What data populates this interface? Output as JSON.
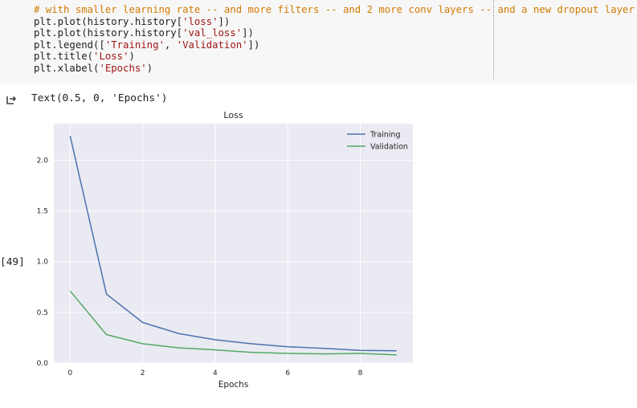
{
  "cell": {
    "code_lines": [
      {
        "parts": [
          {
            "t": "# with smaller learning rate -- and more filters -- and 2 more conv layers -- and a new dropout layer",
            "c": "cm"
          }
        ]
      },
      {
        "parts": [
          {
            "t": "plt.plot(history.history[",
            "c": ""
          },
          {
            "t": "'loss'",
            "c": "st"
          },
          {
            "t": "])",
            "c": ""
          }
        ]
      },
      {
        "parts": [
          {
            "t": "plt.plot(history.history[",
            "c": ""
          },
          {
            "t": "'val_loss'",
            "c": "st"
          },
          {
            "t": "])",
            "c": ""
          }
        ]
      },
      {
        "parts": [
          {
            "t": "plt.legend([",
            "c": ""
          },
          {
            "t": "'Training'",
            "c": "st"
          },
          {
            "t": ", ",
            "c": ""
          },
          {
            "t": "'Validation'",
            "c": "st"
          },
          {
            "t": "])",
            "c": ""
          }
        ]
      },
      {
        "parts": [
          {
            "t": "plt.title(",
            "c": ""
          },
          {
            "t": "'Loss'",
            "c": "st"
          },
          {
            "t": ")",
            "c": ""
          }
        ]
      },
      {
        "parts": [
          {
            "t": "plt.xlabel(",
            "c": ""
          },
          {
            "t": "'Epochs'",
            "c": "st"
          },
          {
            "t": ")",
            "c": ""
          }
        ]
      }
    ],
    "execution_count": "[49]",
    "output_text": "Text(0.5, 0, 'Epochs')",
    "output_icon": "output-arrow-icon"
  },
  "colors": {
    "code_bg": "#f7f7f7",
    "comment": "#d27a00",
    "string": "#a31515",
    "plot_bg": "#eaeaf2",
    "training": "#4c72b0",
    "validation": "#55a868"
  },
  "chart_data": {
    "type": "line",
    "title": "Loss",
    "xlabel": "Epochs",
    "ylabel": "",
    "x": [
      0,
      1,
      2,
      3,
      4,
      5,
      6,
      7,
      8,
      9
    ],
    "xlim": [
      -0.45,
      9.45
    ],
    "ylim": [
      0,
      2.36
    ],
    "xticks": [
      0,
      2,
      4,
      6,
      8
    ],
    "yticks": [
      0.0,
      0.5,
      1.0,
      1.5,
      2.0
    ],
    "xtick_labels": [
      "0",
      "2",
      "4",
      "6",
      "8"
    ],
    "ytick_labels": [
      "0.0",
      "0.5",
      "1.0",
      "1.5",
      "2.0"
    ],
    "grid": true,
    "legend_position": "top-right",
    "series": [
      {
        "name": "Training",
        "color": "#4c72b0",
        "values": [
          2.24,
          0.68,
          0.4,
          0.29,
          0.23,
          0.19,
          0.16,
          0.145,
          0.125,
          0.12
        ]
      },
      {
        "name": "Validation",
        "color": "#55a868",
        "values": [
          0.71,
          0.28,
          0.19,
          0.15,
          0.13,
          0.105,
          0.095,
          0.09,
          0.095,
          0.08
        ]
      }
    ]
  }
}
